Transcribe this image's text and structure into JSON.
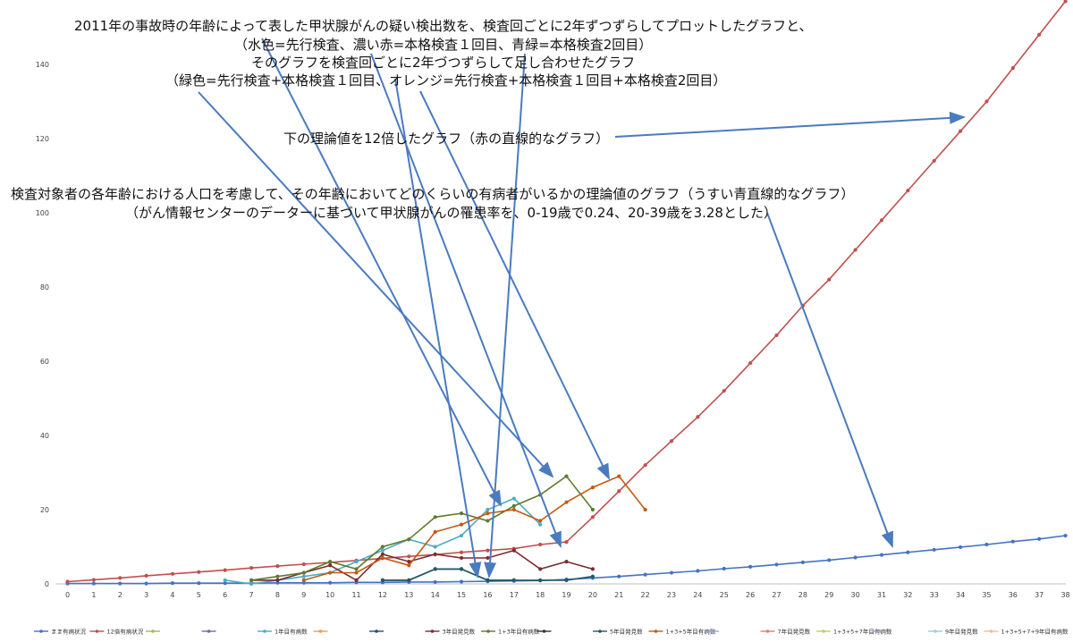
{
  "chart_data": {
    "type": "line",
    "x": [
      0,
      1,
      2,
      3,
      4,
      5,
      6,
      7,
      8,
      9,
      10,
      11,
      12,
      13,
      14,
      15,
      16,
      17,
      18,
      19,
      20,
      21,
      22,
      23,
      24,
      25,
      26,
      27,
      28,
      29,
      30,
      31,
      32,
      33,
      34,
      35,
      36,
      37,
      38
    ],
    "ylim": [
      0,
      160
    ],
    "y_ticks": [
      0,
      20,
      40,
      60,
      80,
      100,
      120,
      140
    ],
    "grid": false,
    "legend_position": "bottom",
    "series": [
      {
        "name": "まま有病状況",
        "color": "#4472c4",
        "x": [
          0,
          1,
          2,
          3,
          4,
          5,
          6,
          7,
          8,
          9,
          10,
          11,
          12,
          13,
          14,
          15,
          16,
          17,
          18,
          19,
          20,
          21,
          22,
          23,
          24,
          25,
          26,
          27,
          28,
          29,
          30,
          31,
          32,
          33,
          34,
          35,
          36,
          37,
          38
        ],
        "y": [
          0.1,
          0.1,
          0.1,
          0.1,
          0.2,
          0.2,
          0.2,
          0.2,
          0.3,
          0.3,
          0.3,
          0.4,
          0.4,
          0.5,
          0.5,
          0.6,
          0.7,
          0.8,
          0.9,
          1.2,
          1.6,
          2.0,
          2.5,
          3.0,
          3.5,
          4.1,
          4.6,
          5.2,
          5.8,
          6.4,
          7.1,
          7.8,
          8.5,
          9.2,
          9.9,
          10.6,
          11.4,
          12.1,
          13.0
        ]
      },
      {
        "name": "12倍有病状況",
        "color": "#c0504d",
        "x": [
          0,
          1,
          2,
          3,
          4,
          5,
          6,
          7,
          8,
          9,
          10,
          11,
          12,
          13,
          14,
          15,
          16,
          17,
          18,
          19,
          20,
          21,
          22,
          23,
          24,
          25,
          26,
          27,
          28,
          29,
          30,
          31,
          32,
          33,
          34,
          35,
          36,
          37,
          38
        ],
        "y": [
          0.6,
          1.1,
          1.6,
          2.2,
          2.7,
          3.2,
          3.7,
          4.3,
          4.8,
          5.3,
          5.8,
          6.3,
          6.9,
          7.4,
          7.9,
          8.5,
          9.0,
          9.5,
          10.6,
          11.3,
          18,
          25,
          32,
          38.5,
          45,
          52,
          59.5,
          67,
          75,
          82,
          90,
          98,
          106,
          114,
          122,
          130,
          139,
          148,
          157
        ]
      },
      {
        "name": "",
        "color": "#9bbb59",
        "x": [],
        "y": []
      },
      {
        "name": "",
        "color": "#8064a2",
        "x": [],
        "y": []
      },
      {
        "name": "1年目有病数",
        "color": "#4bacc6",
        "x": [
          6,
          7,
          8,
          9,
          10,
          11,
          12,
          13,
          14,
          15,
          16,
          17,
          18
        ],
        "y": [
          1,
          0,
          1,
          2,
          3,
          6,
          9,
          12,
          10,
          13,
          20,
          23,
          16
        ]
      },
      {
        "name": "",
        "color": "#f79646",
        "x": [],
        "y": []
      },
      {
        "name": "",
        "color": "#1f4e79",
        "x": [
          12,
          13,
          14,
          15,
          16,
          17
        ],
        "y": [
          1,
          1,
          4,
          4,
          1,
          1
        ]
      },
      {
        "name": "3年目発見数",
        "color": "#7b2c33",
        "x": [
          7,
          8,
          9,
          10,
          11,
          12,
          13,
          14,
          15,
          16,
          17,
          18,
          19,
          20
        ],
        "y": [
          1,
          1,
          3,
          5,
          1,
          8,
          6,
          8,
          7,
          7,
          9,
          4,
          6,
          4
        ]
      },
      {
        "name": "1+3年目有病数",
        "color": "#5f7a2e",
        "x": [
          7,
          8,
          9,
          10,
          11,
          12,
          13,
          14,
          15,
          16,
          17,
          18,
          19,
          20
        ],
        "y": [
          1,
          2,
          3,
          6,
          4,
          10,
          12,
          18,
          19,
          17,
          21,
          24,
          29,
          20
        ]
      },
      {
        "name": "",
        "color": "#3b2a4d",
        "x": [],
        "y": []
      },
      {
        "name": "5年目発見数",
        "color": "#215967",
        "x": [
          12,
          13,
          14,
          15,
          16,
          17,
          18,
          19,
          20
        ],
        "y": [
          1,
          1,
          4,
          4,
          1,
          1,
          1,
          1,
          2
        ]
      },
      {
        "name": "1+3+5年目有病数",
        "color": "#c65911",
        "x": [
          9,
          10,
          11,
          12,
          13,
          14,
          15,
          16,
          17,
          18,
          19,
          20,
          21,
          22
        ],
        "y": [
          1,
          3,
          3,
          7,
          5,
          14,
          16,
          19,
          20,
          17,
          22,
          26,
          29,
          20
        ]
      },
      {
        "name": "",
        "color": "#8ea9db",
        "x": [],
        "y": []
      },
      {
        "name": "7年目発見数",
        "color": "#e07b7b",
        "x": [],
        "y": []
      },
      {
        "name": "1+3+5+7年目有病数",
        "color": "#b5cf6b",
        "x": [],
        "y": []
      },
      {
        "name": "",
        "color": "#b4a7d6",
        "x": [],
        "y": []
      },
      {
        "name": "9年目発見数",
        "color": "#93d0e0",
        "x": [],
        "y": []
      },
      {
        "name": "1+3+5+7+9年目有病数",
        "color": "#f9b97f",
        "x": [],
        "y": []
      }
    ],
    "annotations": [
      "2011年の事故時の年齢によって表した甲状腺がんの疑い検出数を、検査回ごとに2年ずつずらしてプロットしたグラフと、",
      "（水色=先行検査、濃い赤=本格検査１回目、青緑=本格検査2回目）",
      "そのグラフを検査回ごとに2年づつずらして足し合わせたグラフ",
      "（緑色=先行検査+本格検査１回目、オレンジ=先行検査+本格検査１回目+本格検査2回目）",
      "下の理論値を12倍したグラフ（赤の直線的なグラフ）",
      "検査対象者の各年齢における人口を考慮して、その年齢においてどのくらいの有病者がいるかの理論値のグラフ（うすい青直線的なグラフ）",
      "（がん情報センターのデーターに基づいて甲状腺がんの罹患率を、0-19歳で0.24、20-39歳を3.28とした）"
    ]
  }
}
